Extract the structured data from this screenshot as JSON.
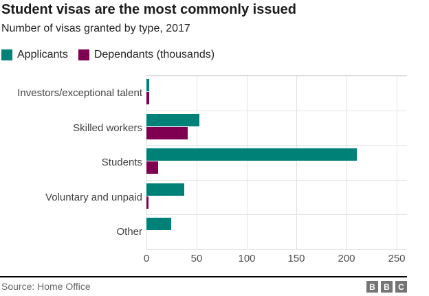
{
  "header": {
    "title": "Student visas are the most commonly issued",
    "subtitle": "Number of visas granted by type, 2017"
  },
  "legend": [
    {
      "label": "Applicants",
      "color": "#008178"
    },
    {
      "label": "Dependants (thousands)",
      "color": "#7f0050"
    }
  ],
  "chart_data": {
    "type": "bar",
    "orientation": "horizontal",
    "title": "Student visas are the most commonly issued",
    "subtitle": "Number of visas granted by type, 2017",
    "categories": [
      "Investors/exceptional talent",
      "Skilled workers",
      "Students",
      "Voluntary and unpaid",
      "Other"
    ],
    "series": [
      {
        "name": "Applicants",
        "color": "#008178",
        "values": [
          3,
          53,
          210,
          38,
          25
        ]
      },
      {
        "name": "Dependants (thousands)",
        "color": "#7f0050",
        "values": [
          3,
          41,
          12,
          2,
          0
        ]
      }
    ],
    "unit": "thousands",
    "x_ticks": [
      0,
      50,
      100,
      150,
      200,
      250
    ],
    "xlim": [
      0,
      260
    ],
    "xlabel": "",
    "ylabel": "",
    "grid": "vertical-gridlines-and-row-separators",
    "legend_position": "top-left"
  },
  "footer": {
    "source": "Source: Home Office",
    "logo_letters": [
      "B",
      "B",
      "C"
    ]
  },
  "colors": {
    "applicants": "#008178",
    "dependants": "#7f0050",
    "grid": "#e3e3e3",
    "plot_top_border": "#b0b0b0",
    "rule": "#000000",
    "logo_gray": "#757575"
  }
}
